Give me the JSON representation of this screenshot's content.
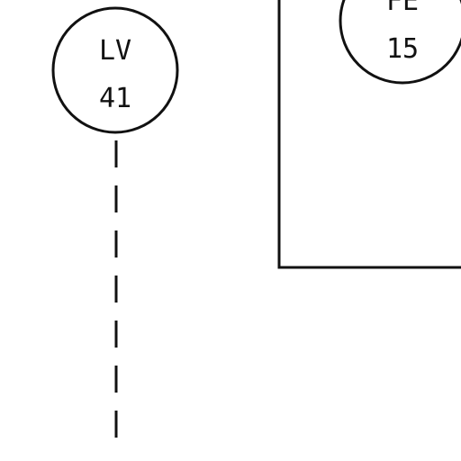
{
  "instruments": [
    {
      "letters": "LV",
      "number": "41"
    },
    {
      "letters": "FE",
      "number": "15"
    }
  ],
  "colors": {
    "line": "#111111",
    "background": "#ffffff"
  }
}
